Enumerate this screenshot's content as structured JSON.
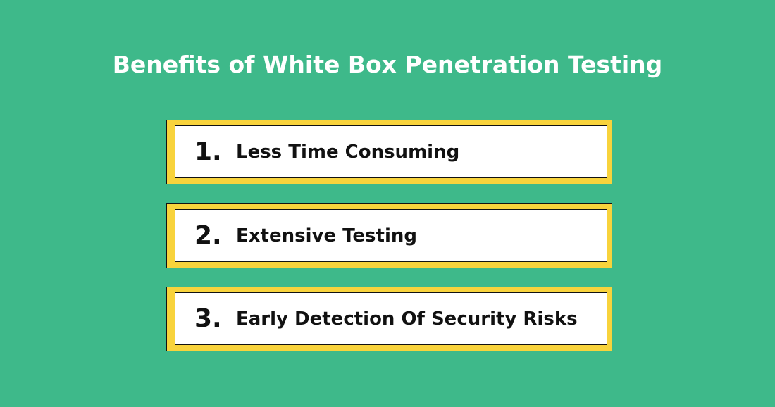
{
  "title": "Benefits of White Box Penetration Testing",
  "items": [
    {
      "number": "1.",
      "label": "Less Time Consuming"
    },
    {
      "number": "2.",
      "label": "Extensive Testing"
    },
    {
      "number": "3.",
      "label": "Early Detection Of Security Risks"
    }
  ],
  "colors": {
    "background": "#3eb98a",
    "frame": "#f8d33c",
    "card": "#ffffff",
    "text": "#111111"
  }
}
